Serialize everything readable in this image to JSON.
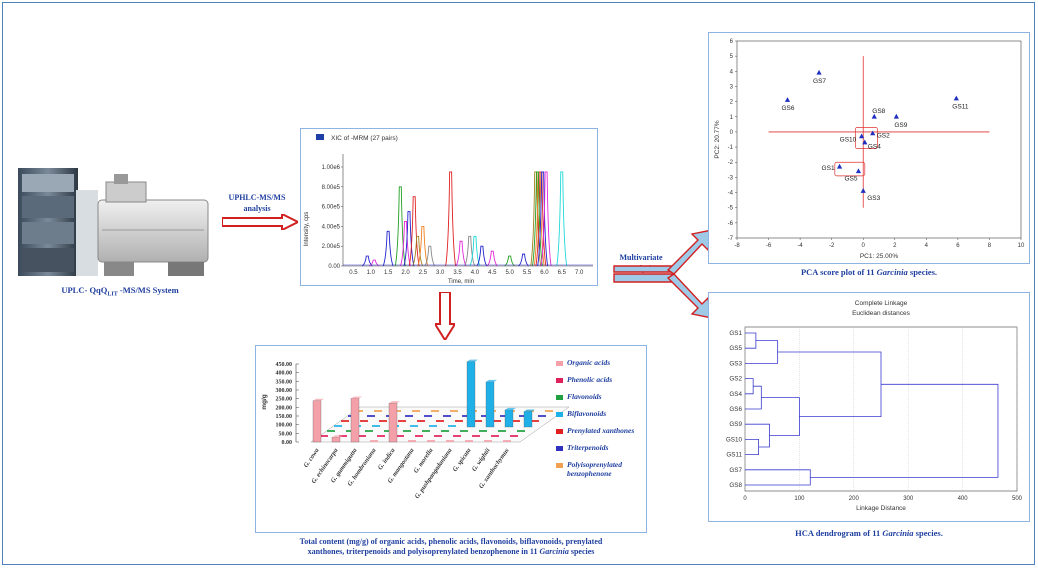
{
  "instrument": {
    "caption_main": "UPLC- QqQ",
    "caption_sub": "LIT",
    "caption_tail": " -MS/MS System"
  },
  "arrow_labels": {
    "uphlc": "UPHLC-MS/MS\nanalysis",
    "multivariate": "Multivariate\nanalysis"
  },
  "chromatogram": {
    "legend": "XIC of -MRM (27 pairs)",
    "ylabel": "Intensity, cps",
    "xlabel": "Time, min",
    "yticks": [
      "1.00e6",
      "8.00e5",
      "6.00e5",
      "4.00e5",
      "2.00e5",
      "0.00"
    ],
    "xticks": [
      "0.5",
      "1.0",
      "1.5",
      "2.0",
      "2.5",
      "3.0",
      "3.5",
      "4.0",
      "4.5",
      "5.0",
      "5.5",
      "6.0",
      "6.5",
      "7.0"
    ],
    "colors": {
      "magenta": "#e028d8",
      "red": "#e02020",
      "blue": "#2020d0",
      "green": "#20a020",
      "cyan": "#20d8d8",
      "olive": "#a08020",
      "orange": "#f08020",
      "gray": "#888888"
    }
  },
  "pca": {
    "xlabel": "PC1: 25.00%",
    "ylabel": "PC2: 20.77%",
    "xticks": [
      "-8",
      "-6",
      "-4",
      "-2",
      "0",
      "2",
      "4",
      "6",
      "8",
      "10"
    ],
    "yticks": [
      "6",
      "5",
      "4",
      "3",
      "2",
      "1",
      "0",
      "-1",
      "-2",
      "-3",
      "-4",
      "-5",
      "-6",
      "-7"
    ],
    "caption": "PCA score plot of 11 ",
    "caption_italic": "Garcinia",
    "caption_tail": " species.",
    "chart_data": {
      "type": "scatter",
      "xlabel": "PC1: 25.00%",
      "ylabel": "PC2: 20.77%",
      "xlim": [
        -8,
        10
      ],
      "ylim": [
        -7,
        6
      ],
      "points": [
        {
          "label": "GS1",
          "x": -1.5,
          "y": -2.3
        },
        {
          "label": "GS2",
          "x": 0.6,
          "y": -0.1
        },
        {
          "label": "GS3",
          "x": 0.0,
          "y": -3.9
        },
        {
          "label": "GS4",
          "x": 0.1,
          "y": -0.7
        },
        {
          "label": "GS5",
          "x": -0.3,
          "y": -2.6
        },
        {
          "label": "GS6",
          "x": -4.8,
          "y": 2.1
        },
        {
          "label": "GS7",
          "x": -2.8,
          "y": 3.9
        },
        {
          "label": "GS8",
          "x": 0.7,
          "y": 1.0
        },
        {
          "label": "GS9",
          "x": 2.1,
          "y": 1.0
        },
        {
          "label": "GS10",
          "x": -0.1,
          "y": -0.3
        },
        {
          "label": "GS11",
          "x": 5.9,
          "y": 2.2
        }
      ]
    }
  },
  "hca": {
    "title1": "Complete Linkage",
    "title2": "Euclidean distances",
    "xlabel": "Linkage Distance",
    "xticks": [
      "0",
      "100",
      "200",
      "300",
      "400",
      "500"
    ],
    "leaves": [
      "GS1",
      "GS5",
      "GS3",
      "GS2",
      "GS4",
      "GS6",
      "GS9",
      "GS10",
      "GS11",
      "GS7",
      "GS8"
    ],
    "caption": "HCA dendrogram of 11 ",
    "caption_italic": "Garcinia",
    "caption_tail": " species.",
    "chart_data": {
      "type": "dendrogram",
      "xlim": [
        0,
        500
      ],
      "leaves": [
        "GS1",
        "GS5",
        "GS3",
        "GS2",
        "GS4",
        "GS6",
        "GS9",
        "GS10",
        "GS11",
        "GS7",
        "GS8"
      ],
      "merges": [
        {
          "a": "GS1",
          "b": "GS5",
          "height": 20
        },
        {
          "a": "GS1+GS5",
          "b": "GS3",
          "height": 60
        },
        {
          "a": "GS2",
          "b": "GS4",
          "height": 15
        },
        {
          "a": "GS2+GS4",
          "b": "GS6",
          "height": 30
        },
        {
          "a": "GS10",
          "b": "GS11",
          "height": 25
        },
        {
          "a": "GS9",
          "b": "GS10+GS11",
          "height": 45
        },
        {
          "a": "GS2+GS4+GS6",
          "b": "GS9+GS10+GS11",
          "height": 100
        },
        {
          "a": "GS1+GS5+GS3",
          "b": "GS2..GS11",
          "height": 250
        },
        {
          "a": "GS7",
          "b": "GS8",
          "height": 120
        },
        {
          "a": "all",
          "b": "GS7+GS8",
          "height": 465
        }
      ]
    }
  },
  "bar3d": {
    "y_unit": "mg/g",
    "yticks": [
      "450.00",
      "400.00",
      "350.00",
      "300.00",
      "250.00",
      "200.00",
      "150.00",
      "100.00",
      "50.00",
      "0.00"
    ],
    "species": [
      "G. cowa",
      "G. echinocarpa",
      "G. gummigutta",
      "G. hombroniana",
      "G. indica",
      "G. mangostana",
      "G. morella",
      "G. pushpangadaniana",
      "G. spicata",
      "G. wightii",
      "G. xanthochymus"
    ],
    "legend": [
      {
        "label": "Organic acids",
        "color": "#f4a0a8"
      },
      {
        "label": "Phenolic acids",
        "color": "#e0205a"
      },
      {
        "label": "Flavonoids",
        "color": "#20a040"
      },
      {
        "label": "Biflavonoids",
        "color": "#20b0e8"
      },
      {
        "label": "Prenylated xanthones",
        "color": "#e02020"
      },
      {
        "label": "Triterpenoids",
        "color": "#3030c0"
      },
      {
        "label": "Polyisoprenylated benzophenone",
        "color": "#f0a050"
      }
    ],
    "caption_line1": "Total content (mg/g) of organic acids, phenolic acids, flavonoids, biflavonoids, prenylated",
    "caption_line2a": "xanthones, triterpenoids and polyisoprenylated benzophenone in 11 ",
    "caption_italic": "Garcinia",
    "caption_tail": " species",
    "chart_data": {
      "type": "bar",
      "categories": [
        "G. cowa",
        "G. echinocarpa",
        "G. gummigutta",
        "G. hombroniana",
        "G. indica",
        "G. mangostana",
        "G. morella",
        "G. pushpangadaniana",
        "G. spicata",
        "G. wightii",
        "G. xanthochymus"
      ],
      "ylim": [
        0,
        450
      ],
      "series": [
        {
          "name": "Organic acids",
          "values": [
            265,
            30,
            280,
            5,
            250,
            5,
            5,
            5,
            5,
            5,
            5
          ]
        },
        {
          "name": "Biflavonoids",
          "values": [
            5,
            5,
            5,
            5,
            5,
            5,
            5,
            420,
            290,
            110,
            100
          ]
        }
      ]
    }
  }
}
